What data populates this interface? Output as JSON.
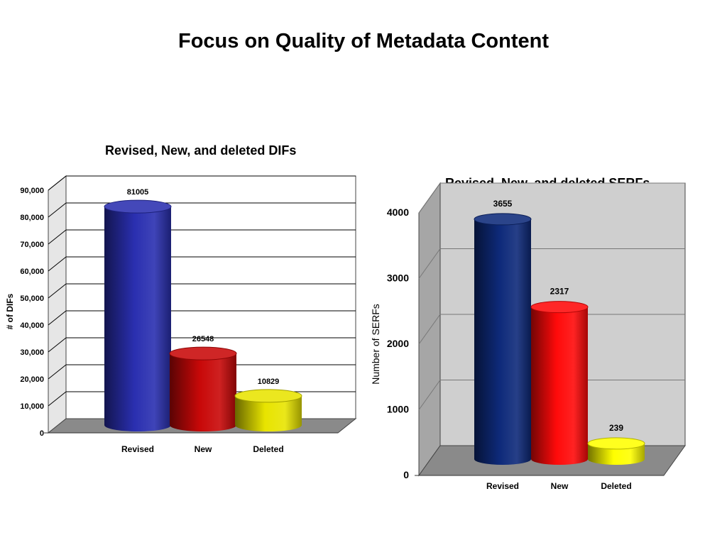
{
  "slide": {
    "title": "Focus on Quality of Metadata Content"
  },
  "chart_data": [
    {
      "type": "bar",
      "title": "Revised, New, and deleted DIFs",
      "categories": [
        "Revised",
        "New",
        "Deleted"
      ],
      "values": [
        81005,
        26548,
        10829
      ],
      "data_labels": [
        "81005",
        "26548",
        "10829"
      ],
      "ylabel": "# of DIFs",
      "xlabel": "",
      "ylim": [
        0,
        90000
      ],
      "yticks": [
        "0",
        "10,000",
        "20,000",
        "30,000",
        "40,000",
        "50,000",
        "60,000",
        "70,000",
        "80,000",
        "90,000"
      ],
      "grid": true,
      "colors": [
        "#2a2fb0",
        "#c80808",
        "#e8e400"
      ]
    },
    {
      "type": "bar",
      "title": "Revised, New, and deleted SERFs",
      "categories": [
        "Revised",
        "New",
        "Deleted"
      ],
      "values": [
        3655,
        2317,
        239
      ],
      "data_labels": [
        "3655",
        "2317",
        "239"
      ],
      "ylabel": "Number of SERFs",
      "xlabel": "",
      "ylim": [
        0,
        4000
      ],
      "yticks": [
        "0",
        "1000",
        "2000",
        "3000",
        "4000"
      ],
      "grid": true,
      "colors": [
        "#0e2a7a",
        "#ff0a0a",
        "#ffff00"
      ]
    }
  ]
}
